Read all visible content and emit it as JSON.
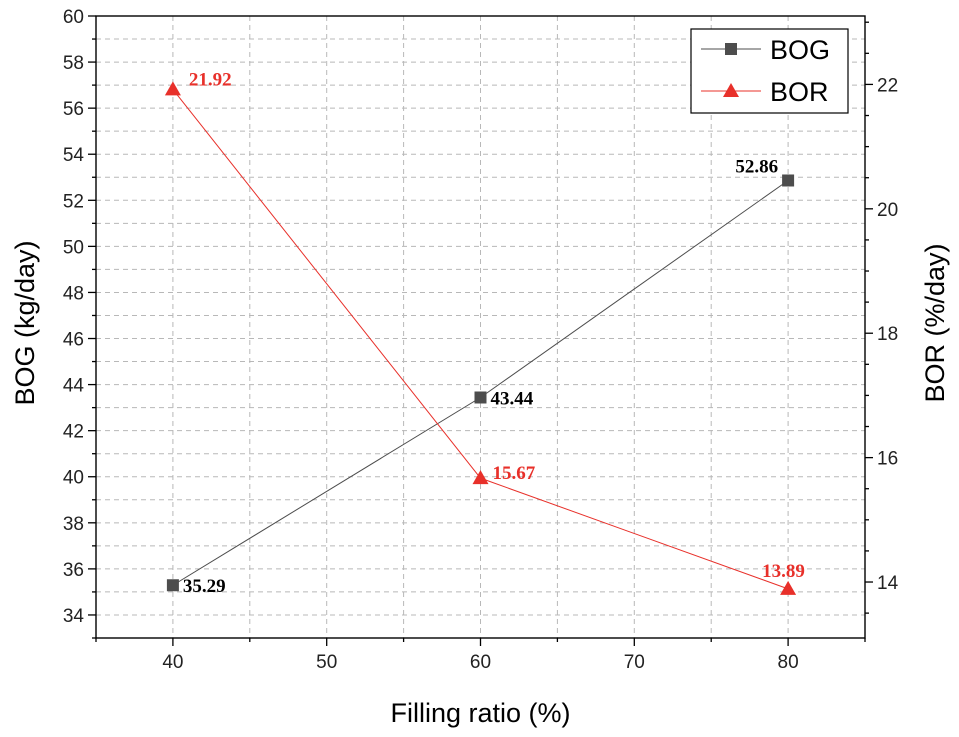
{
  "chart_data": {
    "type": "line",
    "xlabel": "Filling ratio (%)",
    "ylabel_left": "BOG (kg/day)",
    "ylabel_right": "BOR (%/day)",
    "xlim": [
      35,
      85
    ],
    "x_ticks": [
      40,
      50,
      60,
      70,
      80
    ],
    "ylim_left": [
      33,
      60
    ],
    "y_ticks_left": [
      34,
      36,
      38,
      40,
      42,
      44,
      46,
      48,
      50,
      52,
      54,
      56,
      58,
      60
    ],
    "ylim_right": [
      13.1,
      23.1
    ],
    "y_ticks_right": [
      14,
      16,
      18,
      20,
      22
    ],
    "grid": true,
    "legend_position": "top-right",
    "series": [
      {
        "name": "BOG",
        "axis": "left",
        "marker": "square",
        "color": "#4d4d4d",
        "x": [
          40,
          60,
          80
        ],
        "values": [
          35.29,
          43.44,
          52.86
        ],
        "labels": [
          "35.29",
          "43.44",
          "52.86"
        ],
        "label_color": "#000000"
      },
      {
        "name": "BOR",
        "axis": "right",
        "marker": "triangle",
        "color": "#e8302a",
        "x": [
          40,
          60,
          80
        ],
        "values": [
          21.92,
          15.67,
          13.89
        ],
        "labels": [
          "21.92",
          "15.67",
          "13.89"
        ],
        "label_color": "#e8302a"
      }
    ]
  }
}
